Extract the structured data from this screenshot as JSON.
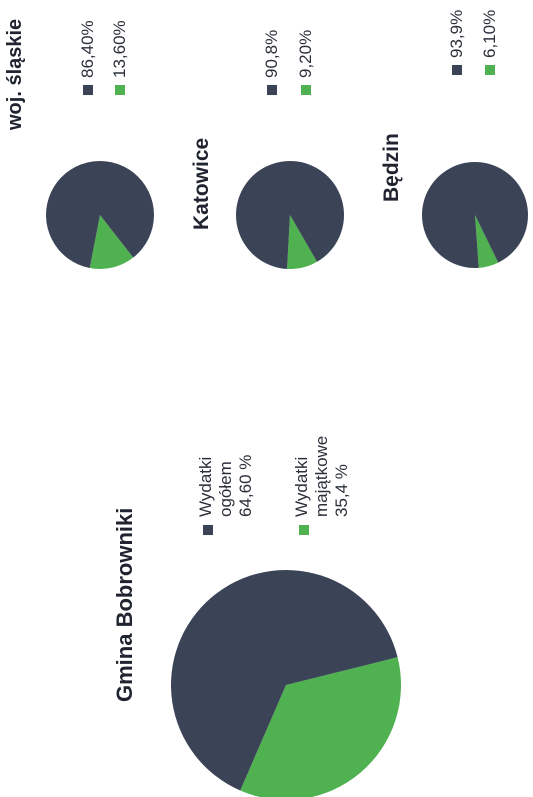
{
  "colors": {
    "dark": "#3b4457",
    "green": "#4fb14f"
  },
  "chart_data": [
    {
      "type": "pie",
      "title": "Gmina Bobrowniki",
      "slices": [
        {
          "label_lines": [
            "Wydatki",
            "ogółem",
            "64,60 %"
          ],
          "value": 64.6,
          "color": "#3b4457"
        },
        {
          "label_lines": [
            "Wydatki",
            "majątkowe",
            "35,4 %"
          ],
          "value": 35.4,
          "color": "#4fb14f"
        }
      ]
    },
    {
      "type": "pie",
      "title": "woj. śląskie",
      "slices": [
        {
          "label_lines": [
            "86,40%"
          ],
          "value": 86.4,
          "color": "#3b4457"
        },
        {
          "label_lines": [
            "13,60%"
          ],
          "value": 13.6,
          "color": "#4fb14f"
        }
      ]
    },
    {
      "type": "pie",
      "title": "Katowice",
      "slices": [
        {
          "label_lines": [
            "90,8%"
          ],
          "value": 90.8,
          "color": "#3b4457"
        },
        {
          "label_lines": [
            "9,20%"
          ],
          "value": 9.2,
          "color": "#4fb14f"
        }
      ]
    },
    {
      "type": "pie",
      "title": "Będzin",
      "slices": [
        {
          "label_lines": [
            "93,9%"
          ],
          "value": 93.9,
          "color": "#3b4457"
        },
        {
          "label_lines": [
            "6,10%"
          ],
          "value": 6.1,
          "color": "#4fb14f"
        }
      ]
    }
  ]
}
